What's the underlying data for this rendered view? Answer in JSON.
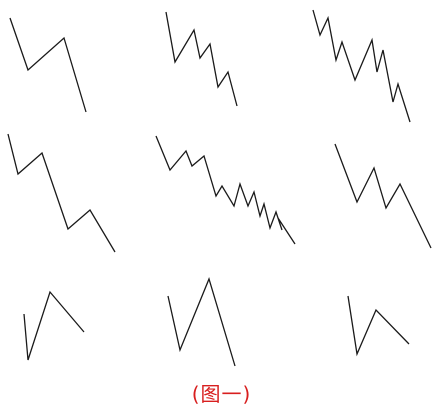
{
  "caption": "(图一)",
  "colors": {
    "line": "#1a1a1a",
    "caption": "#d81f1f",
    "background": "#ffffff"
  },
  "panels": [
    {
      "name": "panel-r1-c1",
      "points": [
        [
          10,
          18
        ],
        [
          28,
          70
        ],
        [
          64,
          38
        ],
        [
          86,
          112
        ]
      ]
    },
    {
      "name": "panel-r1-c2",
      "points": [
        [
          166,
          12
        ],
        [
          175,
          62
        ],
        [
          194,
          30
        ],
        [
          200,
          58
        ],
        [
          210,
          44
        ],
        [
          218,
          87
        ],
        [
          228,
          72
        ],
        [
          237,
          106
        ]
      ]
    },
    {
      "name": "panel-r1-c3",
      "points": [
        [
          313,
          10
        ],
        [
          320,
          35
        ],
        [
          328,
          18
        ],
        [
          336,
          60
        ],
        [
          342,
          42
        ],
        [
          355,
          80
        ],
        [
          372,
          40
        ],
        [
          377,
          72
        ],
        [
          383,
          50
        ],
        [
          393,
          102
        ],
        [
          398,
          84
        ],
        [
          410,
          122
        ]
      ]
    },
    {
      "name": "panel-r2-c1",
      "points": [
        [
          8,
          134
        ],
        [
          18,
          174
        ],
        [
          42,
          153
        ],
        [
          68,
          229
        ],
        [
          90,
          210
        ],
        [
          115,
          252
        ]
      ]
    },
    {
      "name": "panel-r2-c2",
      "points": [
        [
          156,
          136
        ],
        [
          170,
          170
        ],
        [
          186,
          151
        ],
        [
          192,
          166
        ],
        [
          204,
          156
        ],
        [
          216,
          196
        ],
        [
          222,
          186
        ],
        [
          234,
          206
        ],
        [
          240,
          184
        ],
        [
          248,
          206
        ],
        [
          254,
          192
        ],
        [
          260,
          216
        ],
        [
          264,
          204
        ],
        [
          270,
          228
        ],
        [
          276,
          212
        ],
        [
          282,
          230
        ],
        [
          278,
          218
        ],
        [
          295,
          244
        ]
      ]
    },
    {
      "name": "panel-r2-c3",
      "points": [
        [
          335,
          144
        ],
        [
          357,
          202
        ],
        [
          374,
          168
        ],
        [
          386,
          208
        ],
        [
          400,
          184
        ],
        [
          431,
          248
        ]
      ]
    },
    {
      "name": "panel-r3-c1",
      "points": [
        [
          24,
          314
        ],
        [
          28,
          360
        ],
        [
          50,
          292
        ],
        [
          84,
          332
        ]
      ]
    },
    {
      "name": "panel-r3-c2",
      "points": [
        [
          168,
          296
        ],
        [
          180,
          350
        ],
        [
          209,
          279
        ],
        [
          235,
          366
        ]
      ]
    },
    {
      "name": "panel-r3-c3",
      "points": [
        [
          348,
          296
        ],
        [
          357,
          354
        ],
        [
          376,
          310
        ],
        [
          409,
          344
        ]
      ]
    }
  ]
}
